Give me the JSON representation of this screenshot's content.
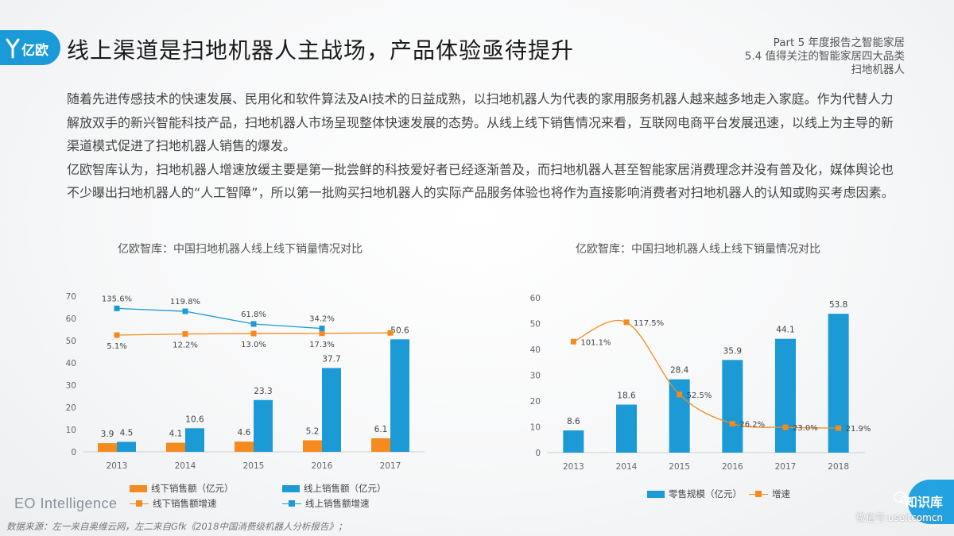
{
  "header": {
    "logo_text": "亿欧",
    "title": "线上渠道是扫地机器人主战场，产品体验亟待提升",
    "part_lines": [
      "Part 5 年度报告之智能家居",
      "5.4 值得关注的智能家居四大品类",
      "扫地机器人"
    ]
  },
  "intro": {
    "paragraphs": [
      "随着先进传感技术的快速发展、民用化和软件算法及AI技术的日益成熟，以扫地机器人为代表的家用服务机器人越来越多地走入家庭。作为代替人力解放双手的新兴智能科技产品，扫地机器人市场呈现整体快速发展的态势。从线上线下销售情况来看，互联网电商平台发展迅速，以线上为主导的新渠道模式促进了扫地机器人销售的爆发。",
      "亿欧智库认为，扫地机器人增速放缓主要是第一批尝鲜的科技爱好者已经逐渐普及，而扫地机器人甚至智能家居消费理念并没有普及化，媒体舆论也不少曝出扫地机器人的“人工智障”，所以第一批购买扫地机器人的实际产品服务体验也将作为直接影响消费者对扫地机器人的认知或购买考虑因素。"
    ]
  },
  "chart_data": [
    {
      "type": "bar",
      "title": "亿欧智库：中国扫地机器人线上线下销量情况对比",
      "categories": [
        "2013",
        "2014",
        "2015",
        "2016",
        "2017"
      ],
      "ylim": [
        0,
        70
      ],
      "yticks": [
        0,
        10,
        20,
        30,
        40,
        50,
        60,
        70
      ],
      "series": [
        {
          "name": "线下销售额（亿元）",
          "kind": "bar",
          "color": "#f58a1f",
          "values": [
            3.9,
            4.1,
            4.6,
            5.2,
            6.1
          ],
          "labels": [
            "3.9",
            "4.1",
            "4.6",
            "5.2",
            "6.1"
          ]
        },
        {
          "name": "线上销售额（亿元）",
          "kind": "bar",
          "color": "#1b9ad6",
          "values": [
            4.5,
            10.6,
            23.3,
            37.7,
            50.6
          ],
          "labels": [
            "4.5",
            "10.6",
            "23.3",
            "37.7",
            "50.6"
          ]
        },
        {
          "name": "线下销售额增速",
          "kind": "line",
          "color": "#f58a1f",
          "plot_values": [
            52.5,
            53.0,
            53.2,
            53.3,
            53.5
          ],
          "labels": [
            "5.1%",
            "12.2%",
            "13.0%",
            "17.3%"
          ]
        },
        {
          "name": "线上销售额增速",
          "kind": "line",
          "color": "#1b9ad6",
          "plot_values": [
            64.5,
            63.2,
            57.5,
            55.5
          ],
          "labels": [
            "135.6%",
            "119.8%",
            "61.8%",
            "34.2%"
          ]
        }
      ]
    },
    {
      "type": "bar",
      "title": "亿欧智库：中国扫地机器人线上线下销量情况对比",
      "categories": [
        "2013",
        "2014",
        "2015",
        "2016",
        "2017",
        "2018"
      ],
      "ylim": [
        0,
        60
      ],
      "yticks": [
        0,
        10,
        20,
        30,
        40,
        50,
        60
      ],
      "series": [
        {
          "name": "零售规模（亿元）",
          "kind": "bar",
          "color": "#1b9ad6",
          "values": [
            8.6,
            18.6,
            28.4,
            35.9,
            44.1,
            53.8
          ],
          "labels": [
            "8.6",
            "18.6",
            "28.4",
            "35.9",
            "44.1",
            "53.8"
          ]
        },
        {
          "name": "增速",
          "kind": "line",
          "color": "#f58a1f",
          "plot_values": [
            43,
            50.5,
            22.5,
            11.2,
            9.8,
            9.5
          ],
          "labels": [
            "101.1%",
            "117.5%",
            "52.5%",
            "26.2%",
            "23.0%",
            "21.9%"
          ]
        }
      ]
    }
  ],
  "footer": {
    "brand": "EO Intelligence",
    "source": "数据来源：左一来自奥维云网，左二来自Gfk《2018中国消费级机器人分析报告》；",
    "watermark_title": "知识库",
    "watermark_sub": "微信号:useitcomcn"
  }
}
